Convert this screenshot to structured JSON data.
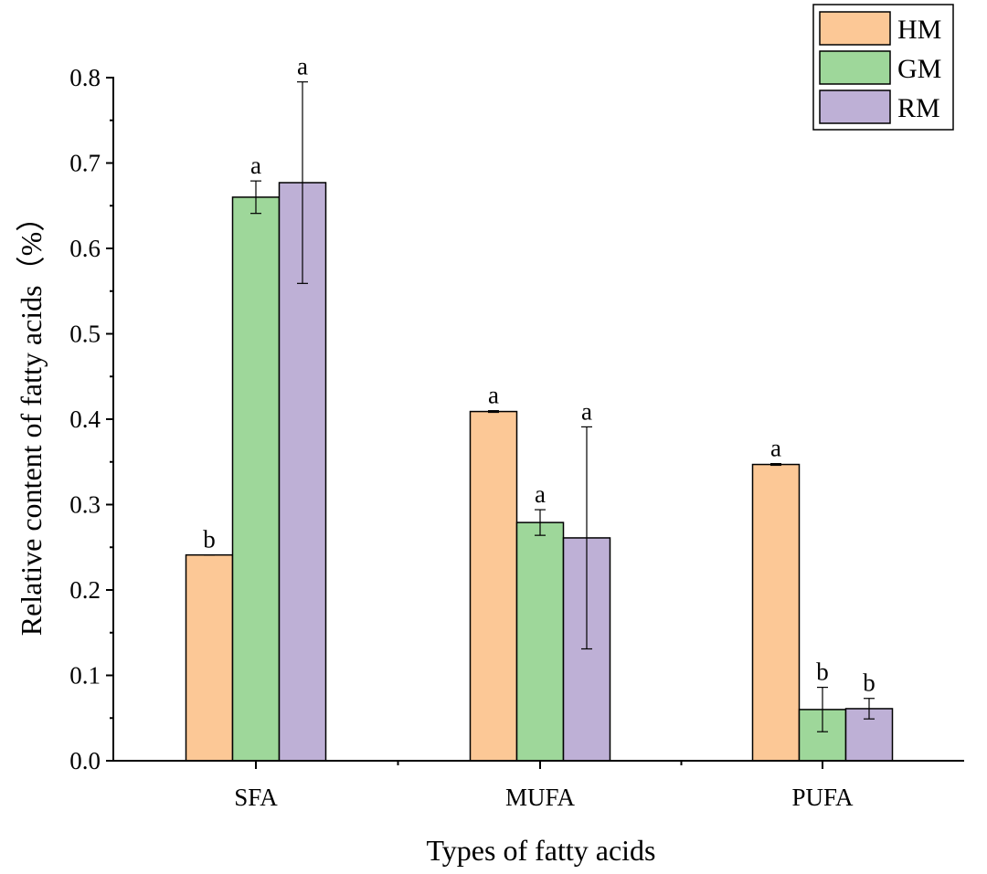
{
  "chart_data": {
    "type": "bar",
    "title": "",
    "xlabel": "Types of fatty acids",
    "ylabel": "Relative content of fatty acids（%）",
    "categories": [
      "SFA",
      "MUFA",
      "PUFA"
    ],
    "ylim": [
      0,
      0.8
    ],
    "yticks": [
      "0.0",
      "0.1",
      "0.2",
      "0.3",
      "0.4",
      "0.5",
      "0.6",
      "0.7",
      "0.8"
    ],
    "legend_position": "top-right",
    "series": [
      {
        "name": "HM",
        "color": "#FCC896",
        "values": [
          0.241,
          0.409,
          0.347
        ],
        "errors": [
          0.0,
          0.001,
          0.001
        ],
        "letters": [
          "b",
          "a",
          "a"
        ]
      },
      {
        "name": "GM",
        "color": "#9ED79A",
        "values": [
          0.66,
          0.279,
          0.06
        ],
        "errors": [
          0.019,
          0.015,
          0.026
        ],
        "letters": [
          "a",
          "a",
          "b"
        ]
      },
      {
        "name": "RM",
        "color": "#BEB0D6",
        "values": [
          0.677,
          0.261,
          0.061
        ],
        "errors": [
          0.118,
          0.13,
          0.012
        ],
        "letters": [
          "a",
          "a",
          "b"
        ]
      }
    ]
  }
}
